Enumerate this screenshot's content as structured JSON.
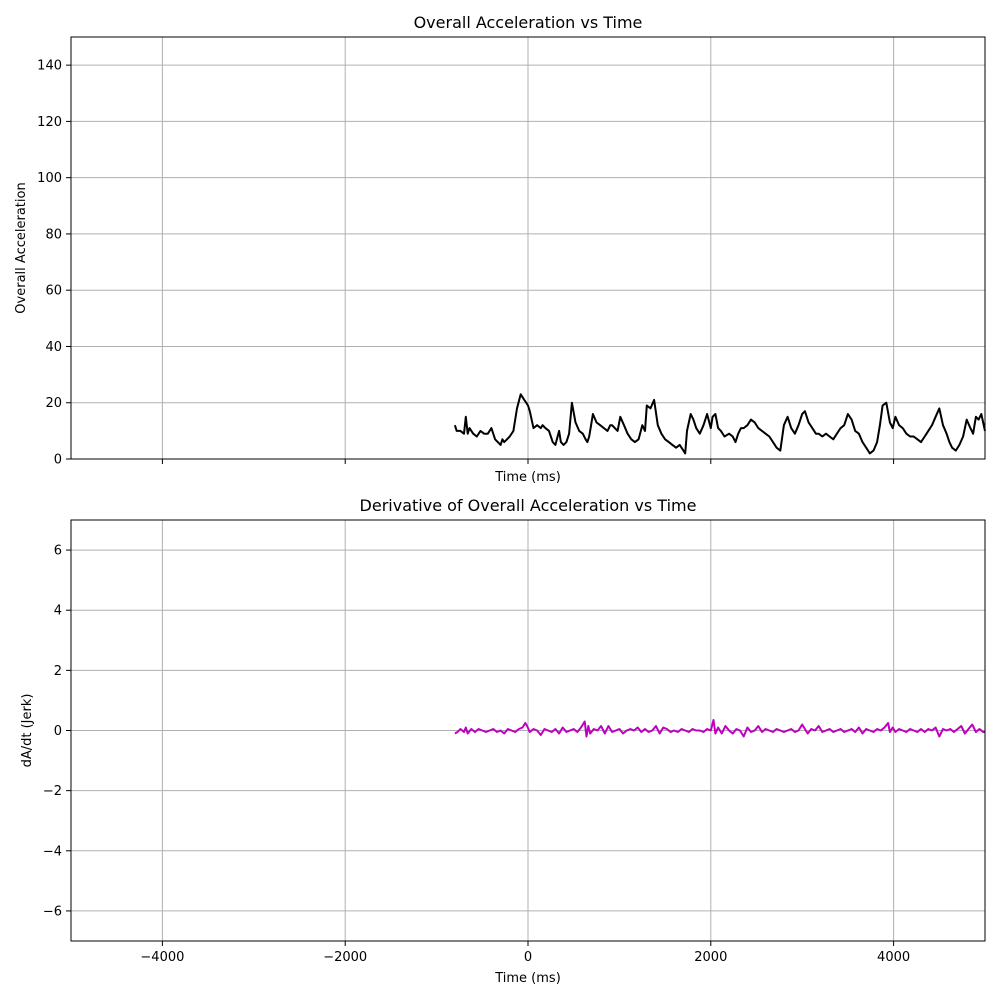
{
  "chart_data": [
    {
      "type": "line",
      "title": "Overall Acceleration vs Time",
      "xlabel": "Time (ms)",
      "ylabel": "Overall Acceleration",
      "xlim": [
        -5000,
        5000
      ],
      "ylim": [
        0,
        150
      ],
      "xticks": [
        -4000,
        -2000,
        0,
        2000,
        4000
      ],
      "yticks": [
        0,
        20,
        40,
        60,
        80,
        100,
        120,
        140
      ],
      "xtick_labels_visible": false,
      "grid": true,
      "color": "#000000",
      "series": [
        {
          "x": [
            -800,
            -780,
            -740,
            -700,
            -680,
            -660,
            -640,
            -600,
            -560,
            -520,
            -480,
            -440,
            -400,
            -360,
            -330,
            -300,
            -280,
            -260,
            -230,
            -200,
            -160,
            -120,
            -80,
            -40,
            -20,
            0,
            20,
            60,
            100,
            140,
            160,
            190,
            230,
            270,
            300,
            340,
            360,
            390,
            420,
            450,
            480,
            520,
            560,
            600,
            630,
            650,
            670,
            690,
            710,
            750,
            790,
            830,
            870,
            900,
            920,
            950,
            980,
            1010,
            1050,
            1090,
            1130,
            1170,
            1210,
            1250,
            1280,
            1300,
            1340,
            1380,
            1420,
            1460,
            1500,
            1540,
            1580,
            1620,
            1660,
            1700,
            1720,
            1740,
            1780,
            1810,
            1840,
            1880,
            1920,
            1960,
            2000,
            2020,
            2050,
            2080,
            2110,
            2150,
            2200,
            2240,
            2270,
            2300,
            2330,
            2360,
            2400,
            2440,
            2480,
            2520,
            2560,
            2600,
            2640,
            2680,
            2720,
            2760,
            2800,
            2840,
            2880,
            2920,
            2960,
            3000,
            3030,
            3070,
            3110,
            3150,
            3180,
            3220,
            3260,
            3300,
            3340,
            3380,
            3420,
            3460,
            3500,
            3540,
            3580,
            3620,
            3660,
            3700,
            3740,
            3780,
            3820,
            3850,
            3880,
            3920,
            3960,
            3990,
            4020,
            4060,
            4100,
            4140,
            4180,
            4220,
            4260,
            4300,
            4340,
            4380,
            4420,
            4460,
            4500,
            4540,
            4580,
            4610,
            4640,
            4680,
            4720,
            4760,
            4800,
            4840,
            4870,
            4900,
            4930,
            4960,
            5000
          ],
          "y": [
            12,
            10,
            10,
            9,
            15,
            9,
            11,
            9,
            8,
            10,
            9,
            9,
            11,
            7,
            6,
            5,
            7,
            6,
            7,
            8,
            10,
            18,
            23,
            21,
            20,
            19,
            17,
            11,
            12,
            11,
            12,
            11,
            10,
            6,
            5,
            10,
            6,
            5,
            6,
            9,
            20,
            13,
            10,
            9,
            7,
            6,
            8,
            12,
            16,
            13,
            12,
            11,
            10,
            12,
            12,
            11,
            10,
            15,
            12,
            9,
            7,
            6,
            7,
            12,
            10,
            19,
            18,
            21,
            12,
            9,
            7,
            6,
            5,
            4,
            5,
            3,
            2,
            10,
            16,
            14,
            11,
            9,
            12,
            16,
            11,
            15,
            16,
            11,
            10,
            8,
            9,
            8,
            6,
            9,
            11,
            11,
            12,
            14,
            13,
            11,
            10,
            9,
            8,
            6,
            4,
            3,
            12,
            15,
            11,
            9,
            12,
            16,
            17,
            13,
            11,
            9,
            9,
            8,
            9,
            8,
            7,
            9,
            11,
            12,
            16,
            14,
            10,
            9,
            6,
            4,
            2,
            3,
            6,
            12,
            19,
            20,
            13,
            11,
            15,
            12,
            11,
            9,
            8,
            8,
            7,
            6,
            8,
            10,
            12,
            15,
            18,
            12,
            9,
            6,
            4,
            3,
            5,
            8,
            14,
            11,
            9,
            15,
            14,
            16,
            10
          ]
        }
      ]
    },
    {
      "type": "line",
      "title": "Derivative of Overall Acceleration vs Time",
      "xlabel": "Time (ms)",
      "ylabel": "dA/dt (Jerk)",
      "xlim": [
        -5000,
        5000
      ],
      "ylim": [
        -7,
        7
      ],
      "xticks": [
        -4000,
        -2000,
        0,
        2000,
        4000
      ],
      "xtick_labels": [
        "−4000",
        "−2000",
        "0",
        "2000",
        "4000"
      ],
      "yticks": [
        -6,
        -4,
        -2,
        0,
        2,
        4,
        6
      ],
      "ytick_labels": [
        "−6",
        "−4",
        "−2",
        "0",
        "2",
        "4",
        "6"
      ],
      "grid": true,
      "color": "#bf00bf",
      "series": [
        {
          "x": [
            -800,
            -770,
            -740,
            -700,
            -680,
            -660,
            -620,
            -580,
            -540,
            -500,
            -460,
            -420,
            -380,
            -340,
            -300,
            -260,
            -220,
            -180,
            -140,
            -100,
            -60,
            -30,
            -10,
            20,
            60,
            100,
            140,
            180,
            220,
            260,
            300,
            340,
            380,
            420,
            460,
            500,
            540,
            580,
            620,
            640,
            660,
            680,
            720,
            760,
            800,
            840,
            880,
            920,
            960,
            1000,
            1040,
            1080,
            1120,
            1160,
            1200,
            1240,
            1280,
            1320,
            1360,
            1400,
            1440,
            1480,
            1520,
            1560,
            1600,
            1640,
            1680,
            1720,
            1760,
            1800,
            1840,
            1880,
            1920,
            1960,
            2000,
            2030,
            2050,
            2080,
            2120,
            2160,
            2200,
            2240,
            2280,
            2320,
            2360,
            2400,
            2440,
            2480,
            2520,
            2560,
            2600,
            2640,
            2680,
            2720,
            2760,
            2800,
            2840,
            2880,
            2920,
            2960,
            3000,
            3030,
            3060,
            3100,
            3140,
            3180,
            3220,
            3260,
            3300,
            3340,
            3380,
            3420,
            3460,
            3500,
            3540,
            3580,
            3620,
            3660,
            3700,
            3740,
            3780,
            3820,
            3860,
            3900,
            3940,
            3960,
            3990,
            4020,
            4060,
            4100,
            4140,
            4180,
            4220,
            4260,
            4300,
            4340,
            4380,
            4420,
            4460,
            4500,
            4540,
            4580,
            4620,
            4660,
            4700,
            4740,
            4780,
            4820,
            4860,
            4900,
            4940,
            4980,
            5000
          ],
          "y": [
            -0.1,
            -0.05,
            0.05,
            -0.05,
            0.1,
            -0.1,
            0.05,
            -0.05,
            0.05,
            0.0,
            -0.05,
            0.0,
            0.05,
            -0.05,
            0.0,
            -0.1,
            0.05,
            0.0,
            -0.05,
            0.05,
            0.1,
            0.25,
            0.15,
            -0.05,
            0.05,
            0.0,
            -0.15,
            0.05,
            0.0,
            -0.05,
            0.05,
            -0.1,
            0.1,
            -0.05,
            0.0,
            0.05,
            -0.05,
            0.1,
            0.3,
            -0.2,
            0.15,
            -0.1,
            0.05,
            0.0,
            0.15,
            -0.1,
            0.15,
            -0.05,
            0.0,
            0.05,
            -0.1,
            0.0,
            0.05,
            0.0,
            0.1,
            -0.05,
            0.05,
            -0.05,
            0.0,
            0.15,
            -0.1,
            0.1,
            0.05,
            -0.05,
            0.0,
            -0.05,
            0.05,
            0.0,
            -0.05,
            0.05,
            0.0,
            0.0,
            -0.05,
            0.05,
            0.0,
            0.35,
            -0.1,
            0.1,
            -0.1,
            0.15,
            0.0,
            -0.1,
            0.05,
            0.0,
            -0.2,
            0.1,
            -0.05,
            0.0,
            0.15,
            -0.05,
            0.05,
            0.0,
            -0.05,
            0.05,
            0.0,
            -0.05,
            0.0,
            0.05,
            -0.05,
            0.0,
            0.2,
            0.05,
            -0.1,
            0.05,
            0.0,
            0.15,
            -0.05,
            0.0,
            0.05,
            -0.05,
            0.0,
            0.05,
            -0.05,
            0.0,
            0.05,
            -0.05,
            0.1,
            -0.1,
            0.05,
            0.0,
            -0.05,
            0.05,
            0.0,
            0.1,
            0.25,
            -0.05,
            0.1,
            -0.05,
            0.05,
            0.0,
            -0.05,
            0.05,
            0.0,
            -0.05,
            0.05,
            -0.05,
            0.05,
            0.0,
            0.1,
            -0.2,
            0.05,
            0.0,
            0.05,
            -0.05,
            0.05,
            0.15,
            -0.1,
            0.05,
            0.2,
            -0.05,
            0.05,
            -0.05,
            -0.05
          ]
        }
      ]
    }
  ]
}
